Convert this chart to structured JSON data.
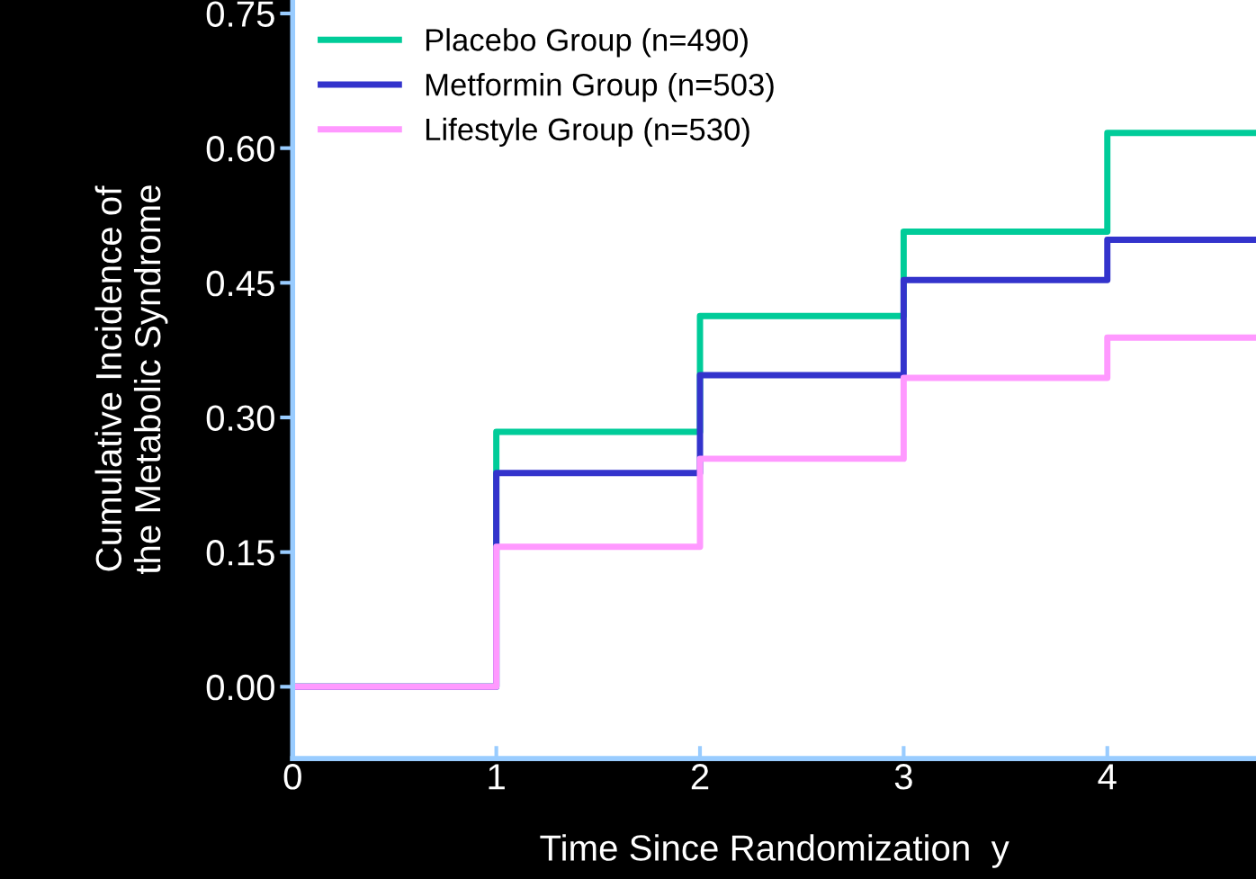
{
  "chart_data": {
    "type": "step",
    "xlabel": "Time Since Randomization  y",
    "ylabel": "Cumulative Incidence of\nthe Metabolic Syndrome",
    "x": [
      0,
      1,
      2,
      3,
      4,
      4.73
    ],
    "series": [
      {
        "name": "Placebo Group (n=490)",
        "color": "#00cc99",
        "values": [
          0,
          0.284,
          0.413,
          0.507,
          0.617,
          0.617
        ]
      },
      {
        "name": "Metformin Group (n=503)",
        "color": "#3333cc",
        "values": [
          0,
          0.238,
          0.347,
          0.453,
          0.498,
          0.498
        ]
      },
      {
        "name": "Lifestyle Group (n=530)",
        "color": "#ff99ff",
        "values": [
          0,
          0.156,
          0.254,
          0.344,
          0.389,
          0.389
        ]
      }
    ],
    "xlim": [
      0,
      4.73
    ],
    "ylim": [
      -0.08,
      0.765
    ],
    "xticks": [
      0,
      1,
      2,
      3,
      4
    ],
    "yticks": [
      {
        "value": 0,
        "label": "0.00"
      },
      {
        "value": 0.15,
        "label": "0.15"
      },
      {
        "value": 0.3,
        "label": "0.30"
      },
      {
        "value": 0.45,
        "label": "0.45"
      },
      {
        "value": 0.6,
        "label": "0.60"
      },
      {
        "value": 0.75,
        "label": "0.75"
      }
    ],
    "legend": "top left",
    "grid": false
  }
}
